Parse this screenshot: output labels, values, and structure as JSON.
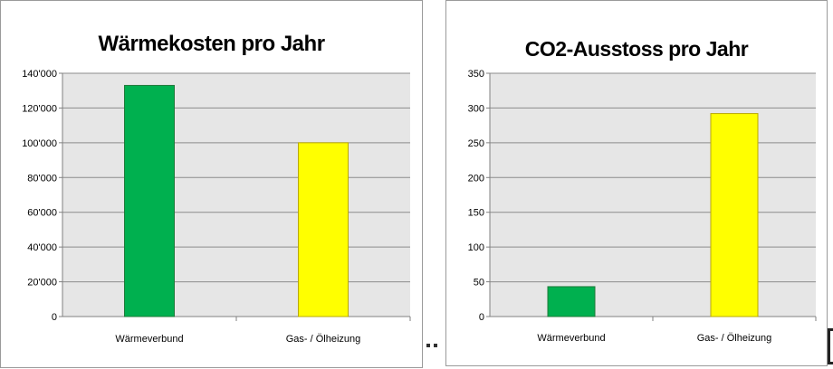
{
  "chart_data": [
    {
      "type": "bar",
      "title": "Wärmekosten pro Jahr",
      "categories": [
        "Wärmeverbund",
        "Gas- / Ölheizung"
      ],
      "values": [
        133000,
        100000
      ],
      "bar_colors": [
        "#00b04f",
        "#ffff00"
      ],
      "ylim": [
        0,
        140000
      ],
      "yticks": [
        0,
        20000,
        40000,
        60000,
        80000,
        100000,
        120000,
        140000
      ],
      "ytick_labels": [
        "0",
        "20'000",
        "40'000",
        "60'000",
        "80'000",
        "100'000",
        "120'000",
        "140'000"
      ],
      "grid": true,
      "plot_background": "#e6e6e6",
      "legend": "none"
    },
    {
      "type": "bar",
      "title": "CO2-Ausstoss  pro Jahr",
      "categories": [
        "Wärmeverbund",
        "Gas- / Ölheizung"
      ],
      "values": [
        43,
        292
      ],
      "bar_colors": [
        "#00b04f",
        "#ffff00"
      ],
      "ylim": [
        0,
        350
      ],
      "yticks": [
        0,
        50,
        100,
        150,
        200,
        250,
        300,
        350
      ],
      "ytick_labels": [
        "0",
        "50",
        "100",
        "150",
        "200",
        "250",
        "300",
        "350"
      ],
      "grid": true,
      "plot_background": "#e6e6e6",
      "legend": "none"
    }
  ]
}
